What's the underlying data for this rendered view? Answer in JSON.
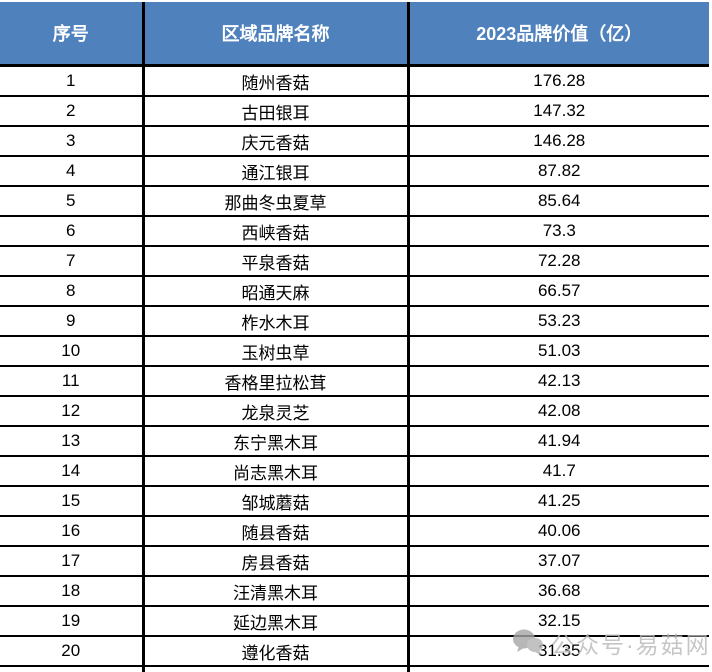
{
  "chart_data": {
    "type": "table",
    "columns": [
      "序号",
      "区域品牌名称",
      "2023品牌价值（亿）"
    ],
    "rows": [
      [
        1,
        "随州香菇",
        176.28
      ],
      [
        2,
        "古田银耳",
        147.32
      ],
      [
        3,
        "庆元香菇",
        146.28
      ],
      [
        4,
        "通江银耳",
        87.82
      ],
      [
        5,
        "那曲冬虫夏草",
        85.64
      ],
      [
        6,
        "西峡香菇",
        73.3
      ],
      [
        7,
        "平泉香菇",
        72.28
      ],
      [
        8,
        "昭通天麻",
        66.57
      ],
      [
        9,
        "柞水木耳",
        53.23
      ],
      [
        10,
        "玉树虫草",
        51.03
      ],
      [
        11,
        "香格里拉松茸",
        42.13
      ],
      [
        12,
        "龙泉灵芝",
        42.08
      ],
      [
        13,
        "东宁黑木耳",
        41.94
      ],
      [
        14,
        "尚志黑木耳",
        41.7
      ],
      [
        15,
        "邹城蘑菇",
        41.25
      ],
      [
        16,
        "随县香菇",
        40.06
      ],
      [
        17,
        "房县香菇",
        37.07
      ],
      [
        18,
        "汪清黑木耳",
        36.68
      ],
      [
        19,
        "延边黑木耳",
        32.15
      ],
      [
        20,
        "遵化香菇",
        31.35
      ]
    ],
    "title": "",
    "legend": "none",
    "grid": "on"
  },
  "watermark": {
    "text": "公众号·易菇网",
    "icon": "wechat-bubbles-icon"
  },
  "colors": {
    "header_bg": "#4F81BD",
    "header_text": "#FFFFFF",
    "border": "#000000",
    "body_text": "#000000",
    "watermark_text": "#B9B9B9"
  }
}
